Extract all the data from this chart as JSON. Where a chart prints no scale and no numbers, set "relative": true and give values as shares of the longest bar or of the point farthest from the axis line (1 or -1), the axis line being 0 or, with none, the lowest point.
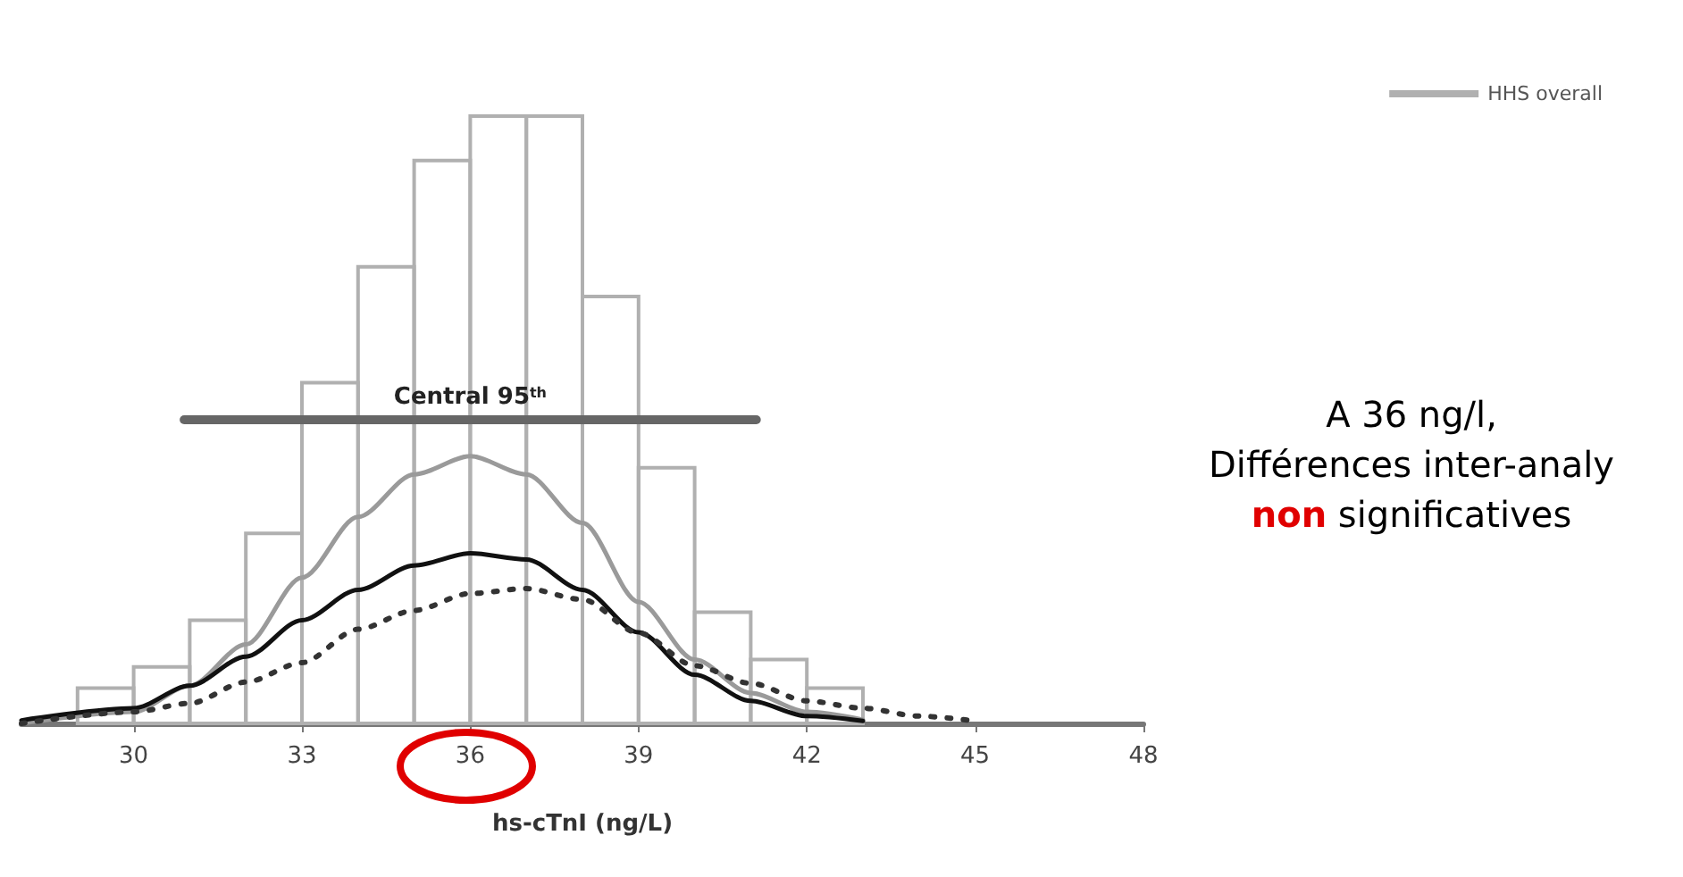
{
  "chart_data": {
    "type": "histogram",
    "relative": true,
    "xlabel": "hs-cTnI (ng/L)",
    "series": [
      {
        "name": "HHS overall",
        "color": "#b0b0b0",
        "bins": [
          29,
          30,
          31,
          32,
          33,
          34,
          35,
          36,
          37,
          38,
          39,
          40,
          41,
          42,
          43
        ],
        "values": [
          0.058,
          0.093,
          0.17,
          0.313,
          0.561,
          0.752,
          0.927,
          1,
          1,
          0.703,
          0.421,
          0.183,
          0.105,
          0.058
        ]
      },
      {
        "type": "line",
        "color": "#9a9a9a",
        "line_style": "solid",
        "x": [
          28,
          30,
          31,
          32,
          33,
          34,
          35,
          36,
          37,
          38,
          39,
          40,
          41,
          42,
          43
        ],
        "values": [
          0,
          0.019,
          0.062,
          0.13,
          0.24,
          0.34,
          0.41,
          0.44,
          0.41,
          0.33,
          0.2,
          0.105,
          0.05,
          0.019,
          0.006
        ]
      },
      {
        "type": "line",
        "color": "#111111",
        "line_style": "solid",
        "x": [
          28,
          30,
          31,
          32,
          33,
          34,
          35,
          36,
          37,
          38,
          39,
          40,
          41,
          42,
          43
        ],
        "values": [
          0.005,
          0.025,
          0.062,
          0.11,
          0.17,
          0.22,
          0.26,
          0.28,
          0.27,
          0.22,
          0.15,
          0.08,
          0.037,
          0.012,
          0.004
        ]
      },
      {
        "type": "line",
        "color": "#333333",
        "line_style": "dotted",
        "x": [
          28,
          30,
          31,
          32,
          33,
          34,
          35,
          36,
          37,
          38,
          39,
          40,
          41,
          42,
          43,
          44,
          45
        ],
        "values": [
          0,
          0.019,
          0.033,
          0.068,
          0.1,
          0.155,
          0.186,
          0.214,
          0.222,
          0.204,
          0.149,
          0.095,
          0.066,
          0.037,
          0.025,
          0.012,
          0.004
        ]
      },
      {
        "type": "line",
        "color": "#666666",
        "line_style": "solid",
        "x": [
          30.9,
          41.1
        ],
        "values": [
          0.5,
          0.5
        ]
      }
    ],
    "xlim": [
      28,
      48
    ],
    "xticks": [
      30,
      33,
      36,
      39,
      42,
      45,
      48
    ],
    "annotations": [
      {
        "text": "Central 95$^{th}$",
        "x": 36,
        "y": 0.5
      },
      "A 36 ng/l,\nDifférences inter-analy\nnon significatives"
    ],
    "legend": "top right",
    "grid": false,
    "marker": "none"
  }
}
